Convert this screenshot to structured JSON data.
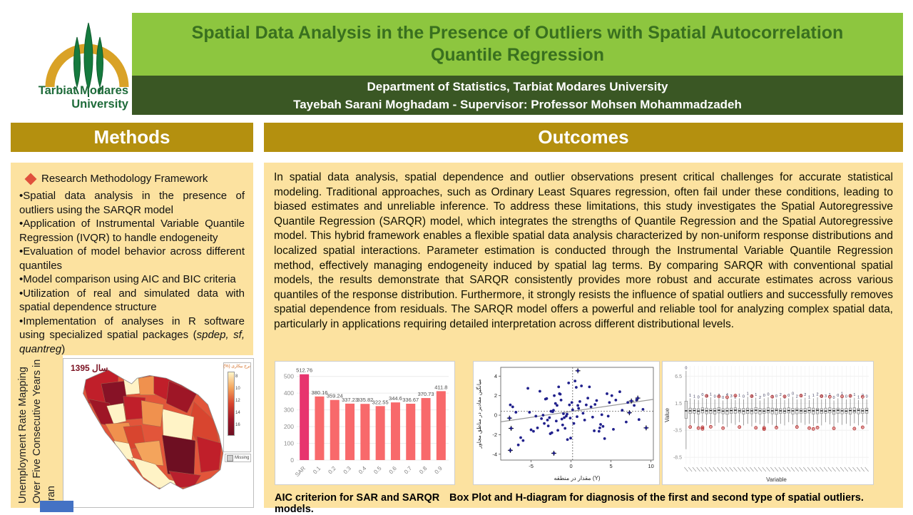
{
  "header": {
    "logo_line1": "Tarbiat Modares",
    "logo_line2": "University",
    "title_line1": "Spatial Data Analysis in the Presence of Outliers with Spatial Autocorrelation",
    "title_line2": "Quantile Regression",
    "affiliation": "Department of Statistics, Tarbiat Modares University",
    "authors": "Tayebah Sarani Moghadam - Supervisor: Professor Mohsen Mohammadzadeh"
  },
  "methods": {
    "heading": "Methods",
    "framework_title": "Research Methodology Framework",
    "bullets": [
      "Spatial data analysis in the presence of outliers using the SARQR model",
      "Application of Instrumental Variable Quantile Regression (IVQR) to handle endogeneity",
      "Evaluation of model behavior across different quantiles",
      "Model comparison using AIC and BIC criteria",
      "Utilization of real and simulated data with spatial dependence structure",
      "Implementation of analyses in R software using specialized spatial packages (spdep, sf, quantreg)"
    ]
  },
  "left_figure": {
    "rotated_caption_lines": [
      "Unemployment Rate Mapping",
      "Over Five Consecutive Years in",
      "Iran"
    ],
    "map_year_label": "سال 1395",
    "legend_title": "نرخ بیکاری (%)",
    "legend_ticks": [
      "8",
      "10",
      "12",
      "14",
      "16"
    ],
    "legend_missing": "Missing"
  },
  "outcomes": {
    "heading": "Outcomes",
    "paragraph": "In spatial data analysis, spatial dependence and outlier observations present critical challenges for accurate statistical modeling. Traditional approaches, such as Ordinary Least Squares regression, often fail under these conditions, leading to biased estimates and unreliable inference. To address these limitations, this study investigates the Spatial Autoregressive Quantile Regression (SARQR) model, which integrates the strengths of Quantile Regression and the Spatial Autoregressive model. This hybrid framework enables a flexible spatial data analysis characterized by non-uniform response distributions and localized spatial interactions. Parameter estimation is conducted through the Instrumental Variable Quantile Regression method, effectively managing endogeneity induced by spatial lag terms. By comparing SARQR with conventional spatial models, the results demonstrate that SARQR consistently provides more robust and accurate estimates across various quantiles of the response distribution. Furthermore, it strongly resists the influence of spatial outliers and successfully removes spatial dependence from residuals. The SARQR model offers a powerful and reliable tool for analyzing complex spatial data, particularly in applications requiring detailed interpretation across different distributional levels."
  },
  "figures": {
    "caption_left": "AIC criterion for SAR and SARQR models.",
    "caption_right": "Box Plot and H-diagram for diagnosis of the first and second type of spatial outliers."
  },
  "colors": {
    "title_band": "#8dc63f",
    "dark_band": "#3a5724",
    "section_header": "#b4900f",
    "content_box": "#fce2a0",
    "bar": "#f8696b",
    "bar_highlight": "#e7346e",
    "scatter_point": "#20208c",
    "outlier_red": "#c00000"
  },
  "chart_data": [
    {
      "id": "aic-bars",
      "type": "bar",
      "title": "",
      "categories": [
        "SAR",
        "0.1",
        "0.2",
        "0.3",
        "0.4",
        "0.5",
        "0.6",
        "0.7",
        "0.8",
        "0.9"
      ],
      "values": [
        512.76,
        380.16,
        359.24,
        337.23,
        335.82,
        322.55,
        344.6,
        336.67,
        370.73,
        411.8
      ],
      "bar_labels": [
        "512.76",
        "380.16",
        "359.24",
        "337.23",
        "335.82",
        "322.55",
        "344.6",
        "336.67",
        "370.73",
        "411.8"
      ],
      "ylim": [
        0,
        520
      ],
      "yticks": [
        0,
        100,
        200,
        300,
        400,
        500
      ],
      "highlight_index": 0,
      "xlabel": "",
      "ylabel": ""
    },
    {
      "id": "h-diagram",
      "type": "scatter",
      "xlabel": "مقدار در منطقه (Y)",
      "ylabel": "میانگین مقادیر در مناطق مجاور",
      "xticks": [
        -5,
        0,
        5,
        10
      ],
      "yticks": [
        -4,
        -2,
        0,
        2,
        4
      ],
      "xlim": [
        -8.8,
        10.3
      ],
      "ylim": [
        -4.6,
        4.9
      ],
      "trend_line": {
        "x1": -8.8,
        "y1": -0.68,
        "x2": 10.3,
        "y2": 1.62
      },
      "dashed_hline": 0.4,
      "dashed_vline": 0.2,
      "points": [
        [
          -7.6,
          1.05
        ],
        [
          -7.3,
          0.85
        ],
        [
          -6.9,
          0.3
        ],
        [
          -6.6,
          -3.05
        ],
        [
          -6.3,
          -2.3
        ],
        [
          -6.0,
          -2.6
        ],
        [
          -5.4,
          2.75
        ],
        [
          -5.2,
          0.3
        ],
        [
          -5.0,
          -1.5
        ],
        [
          -4.7,
          -1.65
        ],
        [
          -4.4,
          -0.1
        ],
        [
          -4.2,
          -1.3
        ],
        [
          -3.9,
          2.45
        ],
        [
          -3.7,
          -0.35
        ],
        [
          -3.5,
          0.0
        ],
        [
          -3.35,
          -0.85
        ],
        [
          -3.2,
          1.65
        ],
        [
          -3.05,
          1.7
        ],
        [
          -2.95,
          -0.5
        ],
        [
          -2.85,
          -1.1
        ],
        [
          -2.7,
          -0.25
        ],
        [
          -2.6,
          -1.9
        ],
        [
          -2.5,
          0.4
        ],
        [
          -2.4,
          -1.8
        ],
        [
          -2.3,
          0.35
        ],
        [
          -2.2,
          0.5
        ],
        [
          -2.1,
          2.0
        ],
        [
          -1.95,
          1.2
        ],
        [
          -1.85,
          -0.6
        ],
        [
          -1.75,
          1.0
        ],
        [
          -1.65,
          -1.55
        ],
        [
          -1.55,
          2.9
        ],
        [
          -1.45,
          2.2
        ],
        [
          -1.35,
          2.15
        ],
        [
          -1.25,
          1.55
        ],
        [
          -1.15,
          -0.4
        ],
        [
          -1.05,
          -1.0
        ],
        [
          -0.95,
          0.15
        ],
        [
          -0.85,
          -0.25
        ],
        [
          -0.75,
          -1.35
        ],
        [
          -0.6,
          -0.1
        ],
        [
          -0.5,
          0.1
        ],
        [
          -0.45,
          -2.5
        ],
        [
          -0.3,
          3.3
        ],
        [
          -0.2,
          1.05
        ],
        [
          -0.1,
          -0.3
        ],
        [
          -0.05,
          -2.35
        ],
        [
          0.1,
          1.3
        ],
        [
          0.2,
          0.55
        ],
        [
          0.35,
          -0.85
        ],
        [
          0.5,
          3.5
        ],
        [
          0.65,
          2.85
        ],
        [
          0.75,
          -0.15
        ],
        [
          0.85,
          1.0
        ],
        [
          0.95,
          0.7
        ],
        [
          1.1,
          1.4
        ],
        [
          1.3,
          3.0
        ],
        [
          1.5,
          0.2
        ],
        [
          1.7,
          -0.5
        ],
        [
          1.9,
          1.05
        ],
        [
          2.1,
          1.75
        ],
        [
          2.3,
          2.9
        ],
        [
          2.5,
          0.85
        ],
        [
          2.7,
          -0.2
        ],
        [
          2.9,
          -1.6
        ],
        [
          3.0,
          1.1
        ],
        [
          3.2,
          1.5
        ],
        [
          3.5,
          -1.65
        ],
        [
          3.6,
          -1.3
        ],
        [
          3.7,
          -0.95
        ],
        [
          3.85,
          0.05
        ],
        [
          4.0,
          -1.15
        ],
        [
          4.2,
          -2.4
        ],
        [
          4.5,
          2.2
        ],
        [
          4.65,
          -0.1
        ],
        [
          4.8,
          1.3
        ],
        [
          5.1,
          2.0
        ],
        [
          5.3,
          -1.45
        ],
        [
          5.6,
          1.55
        ],
        [
          6.1,
          2.4
        ],
        [
          6.4,
          0.5
        ],
        [
          6.9,
          -0.7
        ],
        [
          7.1,
          1.3
        ],
        [
          7.9,
          1.0
        ],
        [
          8.2,
          1.55
        ],
        [
          8.5,
          -0.45
        ],
        [
          9.0,
          0.6
        ]
      ],
      "outlier_points": [
        [
          -7.7,
          -0.3
        ],
        [
          -7.5,
          -1.35
        ],
        [
          -7.6,
          -3.6
        ],
        [
          -2.15,
          -3.9
        ],
        [
          0.85,
          4.55
        ],
        [
          7.3,
          0.25
        ],
        [
          8.35,
          1.75
        ],
        [
          9.4,
          -1.3
        ],
        [
          7.55,
          1.45
        ]
      ]
    },
    {
      "id": "boxplots",
      "type": "boxplot",
      "xlabel": "Variable",
      "ylabel": "Value",
      "yticks": [
        6.5,
        1.5,
        -3.5,
        -8.5
      ],
      "ylim": [
        -9.8,
        8.4
      ],
      "boxes": [
        [
          -7.0,
          -1.3,
          0.1,
          1.9,
          7.5,
          "0"
        ],
        [
          -2.5,
          -0.4,
          0.1,
          0.6,
          2.4,
          "1"
        ],
        [
          -2.2,
          -0.35,
          0.15,
          0.55,
          2.2,
          "1"
        ],
        [
          -2.8,
          -0.5,
          0.05,
          0.5,
          2.1,
          "0"
        ],
        [
          -2.0,
          -0.3,
          0.2,
          0.65,
          2.5,
          "0"
        ],
        [
          -2.6,
          -0.45,
          0.1,
          0.6,
          2.3,
          "3"
        ],
        [
          -2.3,
          -0.4,
          0.15,
          0.5,
          2.6,
          "1"
        ],
        [
          -2.7,
          -0.5,
          0.1,
          0.55,
          2.2,
          "0"
        ],
        [
          -2.1,
          -0.3,
          0.2,
          0.7,
          2.4,
          "2"
        ],
        [
          -2.4,
          -0.45,
          0.05,
          0.5,
          2.0,
          "0"
        ],
        [
          -2.9,
          -0.55,
          0.1,
          0.6,
          2.5,
          "4"
        ],
        [
          -2.2,
          -0.4,
          0.15,
          0.6,
          2.3,
          "3"
        ],
        [
          -2.5,
          -0.35,
          0.2,
          0.65,
          2.1,
          "2"
        ],
        [
          -2.0,
          -0.3,
          0.1,
          0.5,
          2.4,
          "1"
        ],
        [
          -2.6,
          -0.5,
          0.05,
          0.55,
          2.2,
          "0"
        ],
        [
          -2.3,
          -0.4,
          0.15,
          0.6,
          2.7,
          "1"
        ],
        [
          -2.8,
          -0.45,
          0.1,
          0.5,
          2.3,
          "3"
        ],
        [
          -2.1,
          -0.35,
          0.2,
          0.7,
          2.5,
          "1"
        ],
        [
          -2.4,
          -0.5,
          0.1,
          0.55,
          2.0,
          "2"
        ],
        [
          -2.7,
          -0.4,
          0.05,
          0.5,
          2.4,
          "0"
        ],
        [
          -2.2,
          -0.3,
          0.15,
          0.65,
          2.6,
          "0"
        ],
        [
          -2.5,
          -0.45,
          0.1,
          0.6,
          2.2,
          "1"
        ],
        [
          -2.9,
          -0.55,
          0.2,
          0.55,
          2.3,
          "0"
        ],
        [
          -2.3,
          -0.4,
          0.1,
          0.5,
          2.5,
          "2"
        ],
        [
          -2.6,
          -0.35,
          0.05,
          0.6,
          2.1,
          "1"
        ],
        [
          -2.0,
          -0.3,
          0.15,
          0.65,
          2.4,
          "0"
        ],
        [
          -2.4,
          -0.5,
          0.1,
          0.55,
          2.7,
          "0"
        ],
        [
          -2.8,
          -0.45,
          0.2,
          0.6,
          2.2,
          "2"
        ],
        [
          -2.1,
          -0.4,
          0.1,
          0.5,
          2.3,
          "1"
        ],
        [
          -2.5,
          -0.35,
          0.05,
          0.55,
          2.5,
          "2"
        ],
        [
          -2.3,
          -0.3,
          0.15,
          0.7,
          2.1,
          "1"
        ],
        [
          -2.7,
          -0.5,
          0.1,
          0.6,
          2.4,
          "1"
        ],
        [
          -2.2,
          -0.45,
          0.2,
          0.55,
          2.6,
          "2"
        ],
        [
          -2.6,
          -0.4,
          0.1,
          0.5,
          2.2,
          "0"
        ],
        [
          -2.0,
          -0.35,
          0.05,
          0.6,
          2.3,
          "3"
        ],
        [
          -2.4,
          -0.3,
          0.15,
          0.65,
          2.5,
          "1"
        ],
        [
          -2.8,
          -0.55,
          0.1,
          0.55,
          2.0,
          "0"
        ],
        [
          -2.1,
          -0.4,
          0.2,
          0.6,
          2.4,
          "0"
        ],
        [
          -2.5,
          -0.45,
          0.1,
          0.5,
          2.7,
          "1"
        ],
        [
          -2.3,
          -0.35,
          0.05,
          0.55,
          2.2,
          "0"
        ],
        [
          -2.7,
          -0.5,
          0.15,
          0.6,
          2.3,
          "2"
        ],
        [
          -2.2,
          -0.3,
          0.1,
          0.65,
          2.5,
          "1"
        ],
        [
          -2.6,
          -0.45,
          0.2,
          0.55,
          2.1,
          "1"
        ],
        [
          -2.0,
          -0.4,
          0.1,
          0.5,
          2.4,
          "2"
        ],
        [
          -2.4,
          -0.35,
          0.15,
          0.6,
          2.2,
          "0"
        ]
      ],
      "outliers": [
        [
          1,
          -2.9
        ],
        [
          3,
          -3.1
        ],
        [
          4,
          -3.25
        ],
        [
          4,
          -2.95
        ],
        [
          6,
          -2.85
        ],
        [
          9,
          -3.1
        ],
        [
          13,
          -2.9
        ],
        [
          17,
          -3.05
        ],
        [
          19,
          -3.3
        ],
        [
          19,
          -3.05
        ],
        [
          22,
          -3.0
        ],
        [
          27,
          -2.9
        ],
        [
          30,
          -3.1
        ],
        [
          31,
          -3.25
        ],
        [
          32,
          -3.0
        ],
        [
          36,
          -3.15
        ],
        [
          41,
          -3.2
        ],
        [
          43,
          -2.95
        ],
        [
          5,
          2.85
        ],
        [
          8,
          2.75
        ],
        [
          10,
          2.6
        ],
        [
          12,
          2.9
        ],
        [
          16,
          2.8
        ],
        [
          21,
          2.7
        ],
        [
          24,
          2.75
        ],
        [
          28,
          2.9
        ],
        [
          33,
          2.8
        ],
        [
          35,
          2.7
        ],
        [
          38,
          2.75
        ],
        [
          40,
          2.85
        ],
        [
          43,
          2.7
        ]
      ]
    }
  ]
}
